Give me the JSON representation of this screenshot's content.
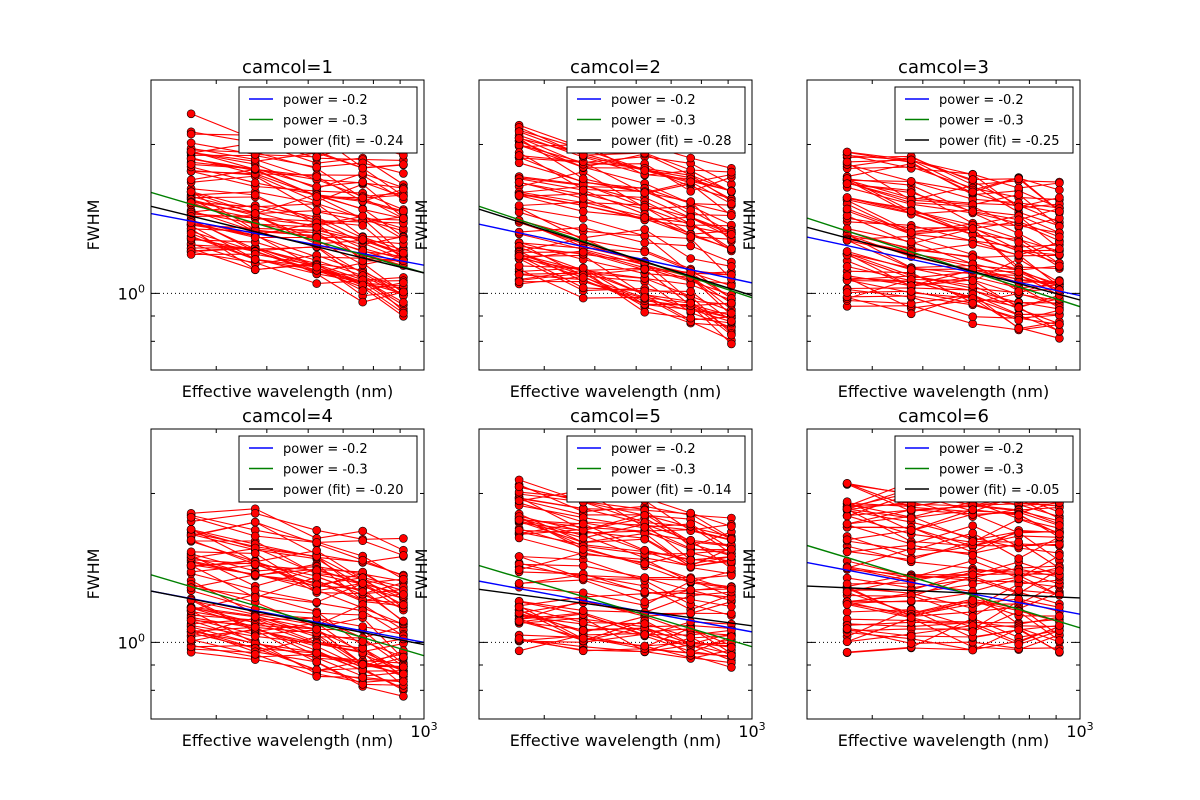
{
  "chart_data": [
    {
      "type": "line",
      "title": "camcol=1",
      "xlabel": "Effective wavelength (nm)",
      "ylabel": "FWHM",
      "xscale": "log",
      "yscale": "log",
      "xlim": [
        300,
        1000
      ],
      "ylim": [
        0.7,
        2.7
      ],
      "x": [
        358,
        475,
        623,
        763,
        913
      ],
      "ytick_label": "1",
      "xtick_label": "",
      "reference_line": 1.0,
      "legend_position": "top-right",
      "legend": [
        {
          "label": "power = -0.2",
          "color": "#0000ff"
        },
        {
          "label": "power = -0.3",
          "color": "#008000"
        },
        {
          "label": "power (fit) = -0.24",
          "color": "#000000"
        }
      ],
      "lines": [
        {
          "label": "power = -0.2",
          "color": "#0000ff",
          "start": [
            300,
            1.45
          ],
          "end": [
            1000,
            1.14
          ]
        },
        {
          "label": "power = -0.3",
          "color": "#008000",
          "start": [
            300,
            1.6
          ],
          "end": [
            1000,
            1.1
          ]
        },
        {
          "label": "power (fit) = -0.24",
          "color": "#000000",
          "start": [
            300,
            1.5
          ],
          "end": [
            1000,
            1.1
          ]
        }
      ],
      "points_color": "#ff0000",
      "series_count": 64,
      "series_ranges": {
        "first": [
          1.25,
          2.2
        ],
        "last": [
          0.95,
          1.85
        ],
        "low": 1.3,
        "high": 2.2
      }
    },
    {
      "type": "line",
      "title": "camcol=2",
      "xlabel": "Effective wavelength (nm)",
      "ylabel": "FWHM",
      "xscale": "log",
      "yscale": "log",
      "xlim": [
        300,
        1000
      ],
      "ylim": [
        0.7,
        2.7
      ],
      "x": [
        358,
        475,
        623,
        763,
        913
      ],
      "ytick_label": "",
      "xtick_label": "",
      "reference_line": 1.0,
      "legend_position": "top-right",
      "legend": [
        {
          "label": "power = -0.2",
          "color": "#0000ff"
        },
        {
          "label": "power = -0.3",
          "color": "#008000"
        },
        {
          "label": "power (fit) = -0.28",
          "color": "#000000"
        }
      ],
      "lines": [
        {
          "label": "power = -0.2",
          "color": "#0000ff",
          "start": [
            300,
            1.38
          ],
          "end": [
            1000,
            1.05
          ]
        },
        {
          "label": "power = -0.3",
          "color": "#008000",
          "start": [
            300,
            1.5
          ],
          "end": [
            1000,
            0.98
          ]
        },
        {
          "label": "power (fit) = -0.28",
          "color": "#000000",
          "start": [
            300,
            1.48
          ],
          "end": [
            1000,
            0.99
          ]
        }
      ],
      "points_color": "#ff0000",
      "series_count": 64,
      "series_ranges": {
        "first": [
          1.12,
          2.15
        ],
        "last": [
          0.85,
          1.7
        ],
        "low": 1.3,
        "high": 2.2
      }
    },
    {
      "type": "line",
      "title": "camcol=3",
      "xlabel": "Effective wavelength (nm)",
      "ylabel": "FWHM",
      "xscale": "log",
      "yscale": "log",
      "xlim": [
        300,
        1000
      ],
      "ylim": [
        0.7,
        2.7
      ],
      "x": [
        358,
        475,
        623,
        763,
        913
      ],
      "ytick_label": "",
      "xtick_label": "",
      "reference_line": 1.0,
      "legend_position": "top-right",
      "legend": [
        {
          "label": "power = -0.2",
          "color": "#0000ff"
        },
        {
          "label": "power = -0.3",
          "color": "#008000"
        },
        {
          "label": "power (fit) = -0.25",
          "color": "#000000"
        }
      ],
      "lines": [
        {
          "label": "power = -0.2",
          "color": "#0000ff",
          "start": [
            300,
            1.3
          ],
          "end": [
            1000,
            0.99
          ]
        },
        {
          "label": "power = -0.3",
          "color": "#008000",
          "start": [
            300,
            1.42
          ],
          "end": [
            1000,
            0.94
          ]
        },
        {
          "label": "power (fit) = -0.25",
          "color": "#000000",
          "start": [
            300,
            1.36
          ],
          "end": [
            1000,
            0.97
          ]
        }
      ],
      "points_color": "#ff0000",
      "series_count": 64,
      "series_ranges": {
        "first": [
          1.0,
          2.0
        ],
        "last": [
          0.85,
          1.6
        ],
        "low": 1.3,
        "high": 2.2
      }
    },
    {
      "type": "line",
      "title": "camcol=4",
      "xlabel": "Effective wavelength (nm)",
      "ylabel": "FWHM",
      "xscale": "log",
      "yscale": "log",
      "xlim": [
        300,
        1000
      ],
      "ylim": [
        0.7,
        2.7
      ],
      "x": [
        358,
        475,
        623,
        763,
        913
      ],
      "ytick_label": "1",
      "xtick_label": "3",
      "reference_line": 1.0,
      "legend_position": "top-right",
      "legend": [
        {
          "label": "power = -0.2",
          "color": "#0000ff"
        },
        {
          "label": "power = -0.3",
          "color": "#008000"
        },
        {
          "label": "power (fit) = -0.20",
          "color": "#000000"
        }
      ],
      "lines": [
        {
          "label": "power = -0.2",
          "color": "#0000ff",
          "start": [
            300,
            1.27
          ],
          "end": [
            1000,
            1.0
          ]
        },
        {
          "label": "power = -0.3",
          "color": "#008000",
          "start": [
            300,
            1.37
          ],
          "end": [
            1000,
            0.94
          ]
        },
        {
          "label": "power (fit) = -0.20",
          "color": "#000000",
          "start": [
            300,
            1.27
          ],
          "end": [
            1000,
            0.99
          ]
        }
      ],
      "points_color": "#ff0000",
      "series_count": 64,
      "series_ranges": {
        "first": [
          1.0,
          1.9
        ],
        "last": [
          0.82,
          1.55
        ],
        "low": 1.3,
        "high": 2.2
      }
    },
    {
      "type": "line",
      "title": "camcol=5",
      "xlabel": "Effective wavelength (nm)",
      "ylabel": "FWHM",
      "xscale": "log",
      "yscale": "log",
      "xlim": [
        300,
        1000
      ],
      "ylim": [
        0.7,
        2.7
      ],
      "x": [
        358,
        475,
        623,
        763,
        913
      ],
      "ytick_label": "",
      "xtick_label": "3",
      "reference_line": 1.0,
      "legend_position": "top-right",
      "legend": [
        {
          "label": "power = -0.2",
          "color": "#0000ff"
        },
        {
          "label": "power = -0.3",
          "color": "#008000"
        },
        {
          "label": "power (fit) = -0.14",
          "color": "#000000"
        }
      ],
      "lines": [
        {
          "label": "power = -0.2",
          "color": "#0000ff",
          "start": [
            300,
            1.33
          ],
          "end": [
            1000,
            1.05
          ]
        },
        {
          "label": "power = -0.3",
          "color": "#008000",
          "start": [
            300,
            1.43
          ],
          "end": [
            1000,
            0.98
          ]
        },
        {
          "label": "power (fit) = -0.14",
          "color": "#000000",
          "start": [
            300,
            1.28
          ],
          "end": [
            1000,
            1.08
          ]
        }
      ],
      "points_color": "#ff0000",
      "series_count": 64,
      "series_ranges": {
        "first": [
          0.99,
          2.1
        ],
        "last": [
          0.93,
          1.7
        ],
        "low": 1.3,
        "high": 2.2
      }
    },
    {
      "type": "line",
      "title": "camcol=6",
      "xlabel": "Effective wavelength (nm)",
      "ylabel": "FWHM",
      "xscale": "log",
      "yscale": "log",
      "xlim": [
        300,
        1000
      ],
      "ylim": [
        0.7,
        2.7
      ],
      "x": [
        358,
        475,
        623,
        763,
        913
      ],
      "ytick_label": "",
      "xtick_label": "3",
      "reference_line": 1.0,
      "legend_position": "top-right",
      "legend": [
        {
          "label": "power = -0.2",
          "color": "#0000ff"
        },
        {
          "label": "power = -0.3",
          "color": "#008000"
        },
        {
          "label": "power (fit) = -0.05",
          "color": "#000000"
        }
      ],
      "lines": [
        {
          "label": "power = -0.2",
          "color": "#0000ff",
          "start": [
            300,
            1.45
          ],
          "end": [
            1000,
            1.14
          ]
        },
        {
          "label": "power = -0.3",
          "color": "#008000",
          "start": [
            300,
            1.57
          ],
          "end": [
            1000,
            1.07
          ]
        },
        {
          "label": "power (fit) = -0.05",
          "color": "#000000",
          "start": [
            300,
            1.3
          ],
          "end": [
            1000,
            1.23
          ]
        }
      ],
      "points_color": "#ff0000",
      "series_count": 64,
      "series_ranges": {
        "first": [
          1.0,
          2.05
        ],
        "last": [
          1.0,
          1.95
        ],
        "low": 1.3,
        "high": 2.2
      }
    }
  ]
}
